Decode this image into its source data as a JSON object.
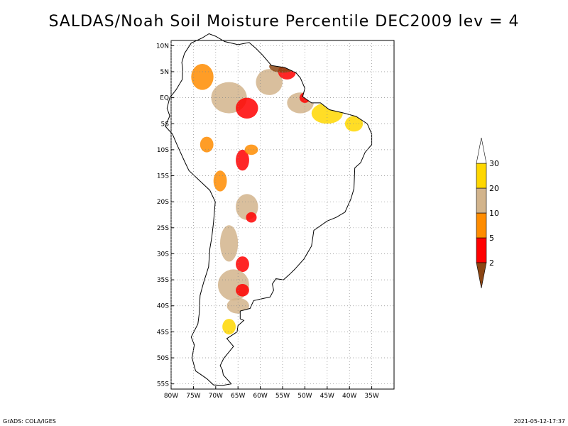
{
  "title": "SALDAS/Noah Soil Moisture Percentile DEC2009 lev = 4",
  "footer": {
    "left": "GrADS: COLA/IGES",
    "right": "2021-05-12-17:37"
  },
  "chart_data": {
    "type": "heatmap",
    "xlim": [
      -80,
      -30
    ],
    "ylim": [
      -56,
      11
    ],
    "x_ticks": [
      -80,
      -75,
      -70,
      -65,
      -60,
      -55,
      -50,
      -45,
      -40,
      -35
    ],
    "x_tick_labels": [
      "80W",
      "75W",
      "70W",
      "65W",
      "60W",
      "55W",
      "50W",
      "45W",
      "40W",
      "35W"
    ],
    "y_ticks": [
      10,
      5,
      0,
      -5,
      -10,
      -15,
      -20,
      -25,
      -30,
      -35,
      -40,
      -45,
      -50,
      -55
    ],
    "y_tick_labels": [
      "10N",
      "5N",
      "EQ",
      "5S",
      "10S",
      "15S",
      "20S",
      "25S",
      "30S",
      "35S",
      "40S",
      "45S",
      "50S",
      "55S"
    ],
    "grid": true,
    "legend": {
      "placement": "right",
      "labels": [
        "2",
        "5",
        "10",
        "20",
        "30"
      ],
      "colors": [
        "#8b4513",
        "#ff0000",
        "#ff8c00",
        "#d2b48c",
        "#ffd700",
        "#ffffff"
      ]
    },
    "regions": [
      {
        "lon": -73,
        "lat": 4,
        "rx": 2.5,
        "ry": 2.5,
        "class": 2
      },
      {
        "lon": -67,
        "lat": 0,
        "rx": 4,
        "ry": 3,
        "class": 3
      },
      {
        "lon": -63,
        "lat": -2,
        "rx": 2.5,
        "ry": 2,
        "class": 1
      },
      {
        "lon": -58,
        "lat": 3,
        "rx": 3,
        "ry": 2.5,
        "class": 3
      },
      {
        "lon": -54,
        "lat": 5,
        "rx": 2,
        "ry": 1.5,
        "class": 1
      },
      {
        "lon": -55,
        "lat": 6,
        "rx": 3,
        "ry": 1.2,
        "class": 0
      },
      {
        "lon": -51,
        "lat": -1,
        "rx": 3,
        "ry": 2,
        "class": 3
      },
      {
        "lon": -50,
        "lat": 0,
        "rx": 1.2,
        "ry": 1,
        "class": 1
      },
      {
        "lon": -45,
        "lat": -3,
        "rx": 3.5,
        "ry": 2,
        "class": 4
      },
      {
        "lon": -39,
        "lat": -5,
        "rx": 2,
        "ry": 1.5,
        "class": 4
      },
      {
        "lon": -72,
        "lat": -9,
        "rx": 1.5,
        "ry": 1.5,
        "class": 2
      },
      {
        "lon": -64,
        "lat": -12,
        "rx": 1.5,
        "ry": 2,
        "class": 1
      },
      {
        "lon": -62,
        "lat": -10,
        "rx": 1.5,
        "ry": 1,
        "class": 2
      },
      {
        "lon": -69,
        "lat": -16,
        "rx": 1.5,
        "ry": 2,
        "class": 2
      },
      {
        "lon": -63,
        "lat": -21,
        "rx": 2.5,
        "ry": 2.5,
        "class": 3
      },
      {
        "lon": -62,
        "lat": -23,
        "rx": 1.2,
        "ry": 1,
        "class": 1
      },
      {
        "lon": -67,
        "lat": -28,
        "rx": 2,
        "ry": 3.5,
        "class": 3
      },
      {
        "lon": -64,
        "lat": -32,
        "rx": 1.5,
        "ry": 1.5,
        "class": 1
      },
      {
        "lon": -66,
        "lat": -36,
        "rx": 3.5,
        "ry": 3,
        "class": 3
      },
      {
        "lon": -64,
        "lat": -37,
        "rx": 1.5,
        "ry": 1.2,
        "class": 1
      },
      {
        "lon": -65,
        "lat": -40,
        "rx": 2.5,
        "ry": 1.5,
        "class": 3
      },
      {
        "lon": -67,
        "lat": -44,
        "rx": 1.5,
        "ry": 1.5,
        "class": 4
      }
    ]
  }
}
